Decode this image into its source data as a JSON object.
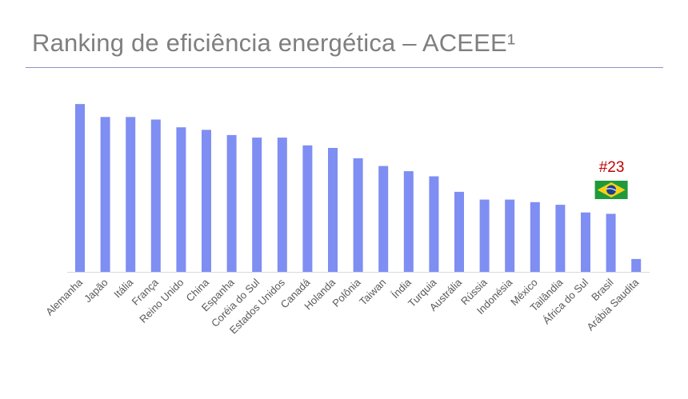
{
  "title": "Ranking de eficiência energética – ACEEE¹",
  "highlight": {
    "rank_label": "#23",
    "country": "Brasil",
    "flag_icon": "brazil-flag-icon",
    "text_color": "#c00000"
  },
  "colors": {
    "bar": "#7f8ef2",
    "axis": "#d9d9d9",
    "title": "#7f7f7f",
    "tick": "#595959"
  },
  "chart_data": {
    "type": "bar",
    "title": "Ranking de eficiência energética – ACEEE¹",
    "xlabel": "",
    "ylabel": "",
    "ylim": [
      0,
      70
    ],
    "grid": false,
    "categories": [
      "Alemanha",
      "Japão",
      "Itália",
      "França",
      "Reino Unido",
      "China",
      "Espanha",
      "Coréia do Sul",
      "Estados Unidos",
      "Canadá",
      "Holanda",
      "Polônia",
      "Taiwan",
      "Índia",
      "Turquia",
      "Austrália",
      "Rússia",
      "Indonésia",
      "México",
      "Tailândia",
      "África do Sul",
      "Brasil",
      "Arábia Saudita"
    ],
    "values": [
      65,
      60,
      60,
      59,
      56,
      55,
      53,
      52,
      52,
      49,
      48,
      44,
      41,
      39,
      37,
      31,
      28,
      28,
      27,
      26,
      23,
      22.5,
      5
    ]
  }
}
